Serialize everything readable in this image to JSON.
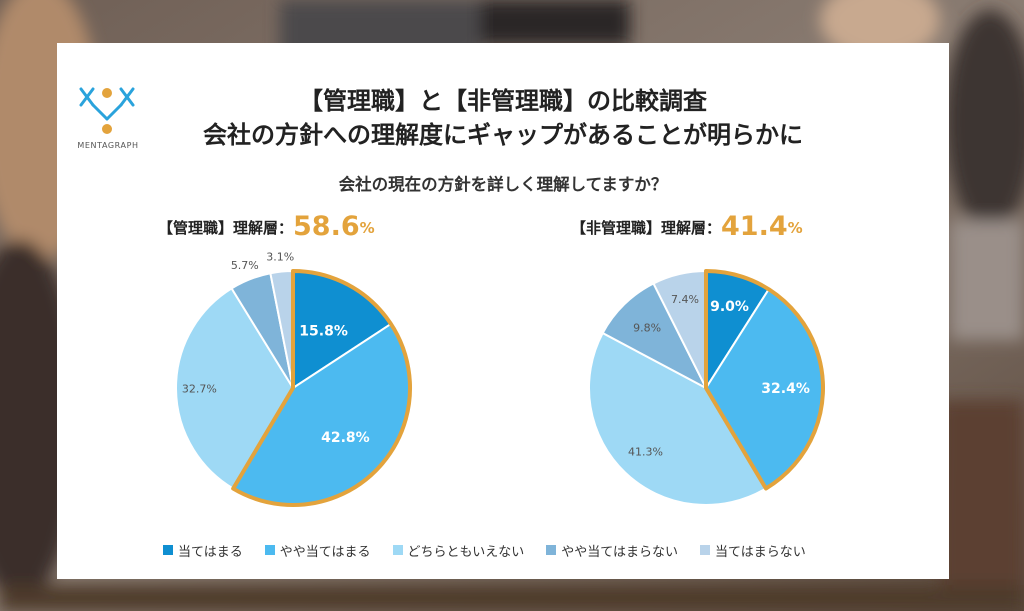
{
  "title_line1": "【管理職】と【非管理職】の比較調査",
  "title_line2": "会社の方針への理解度にギャップがあることが明らかに",
  "logo_text": "MENTAGRAPH",
  "question": "会社の現在の方針を詳しく理解してますか？",
  "colors": {
    "accent": "#e3a33c",
    "slices": [
      "#0f8fd1",
      "#4cbaf0",
      "#9ed9f5",
      "#7fb4d9",
      "#b9d3ea"
    ]
  },
  "chart_data": [
    {
      "type": "pie",
      "group_label": "【管理職】理解層：",
      "highlight_value": "58.6",
      "highlight_unit": "%",
      "labels": [
        "当てはまる",
        "やや当てはまる",
        "どちらともいえない",
        "やや当てはまらない",
        "当てはまらない"
      ],
      "values": [
        15.8,
        42.8,
        32.7,
        5.7,
        3.1
      ],
      "value_labels": [
        "15.8%",
        "42.8%",
        "32.7%",
        "5.7%",
        "3.1%"
      ],
      "highlighted_slices": [
        0,
        1
      ]
    },
    {
      "type": "pie",
      "group_label": "【非管理職】理解層：",
      "highlight_value": "41.4",
      "highlight_unit": "%",
      "labels": [
        "当てはまる",
        "やや当てはまる",
        "どちらともいえない",
        "やや当てはまらない",
        "当てはまらない"
      ],
      "values": [
        9.0,
        32.4,
        41.3,
        9.8,
        7.4
      ],
      "value_labels": [
        "9.0%",
        "32.4%",
        "41.3%",
        "9.8%",
        "7.4%"
      ],
      "highlighted_slices": [
        0,
        1
      ]
    }
  ],
  "legend": [
    "当てはまる",
    "やや当てはまる",
    "どちらともいえない",
    "やや当てはまらない",
    "当てはまらない"
  ]
}
